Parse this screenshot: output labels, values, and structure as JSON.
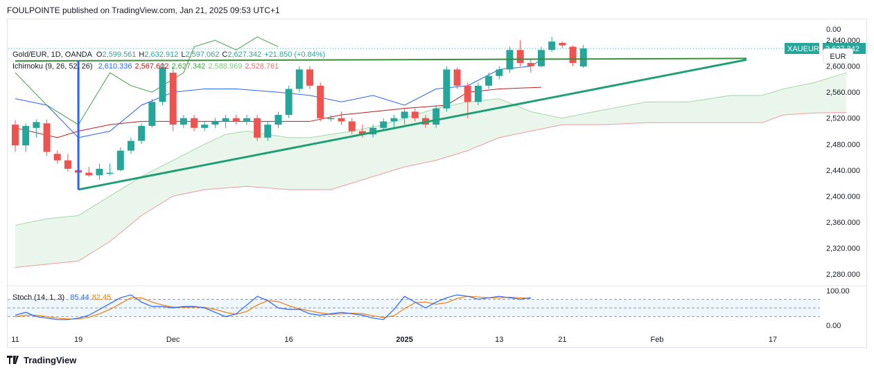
{
  "header": {
    "text": "FOULPOINTE published on TradingView.com, Jan 21, 2025 09:53 UTC+1"
  },
  "footer": {
    "brand": "TradingView"
  },
  "legend": {
    "symbol": "Gold/EUR, 1D, OANDA",
    "o_label": "O",
    "o_value": "2,599.561",
    "h_label": "H",
    "h_value": "2,632.912",
    "l_label": "L",
    "l_value": "2,597.062",
    "c_label": "C",
    "c_value": "2,627.342",
    "change": "+21.850 (+0.84%)",
    "ichimoku_label": "Ichimoku (9, 26, 52, 26)",
    "ichimoku_values": [
      "2,610.336",
      "2,567.602",
      "2,627.342",
      "2,588.969",
      "2,528.761"
    ],
    "stoch_label": "Stoch (14, 1, 3)",
    "stoch_values": [
      "85.44",
      "82.45"
    ]
  },
  "currency_button": "EUR",
  "price_tag": {
    "symbol": "XAUEUR",
    "value": "2,627.342"
  },
  "colors": {
    "up": "#26a69a",
    "down": "#ef5350",
    "conversion": "#2962ff",
    "base": "#b71c1c",
    "lagging": "#43a047",
    "spanA": "#a5d6a7",
    "spanB": "#ef9a9a",
    "cloud": "#e8f5e9",
    "trend": "#1f9e78",
    "resistance": "#388e3c",
    "marker": "#2962ff",
    "stochK": "#2962ff",
    "stochD": "#f57c00"
  },
  "chart_data": {
    "type": "candlestick",
    "price_axis": {
      "ticks": [
        "0.00",
        "2,640.000",
        "2,600.000",
        "2,560.000",
        "2,520.000",
        "2,480.000",
        "2,440.000",
        "2,400.000",
        "2,360.000",
        "2,320.000",
        "2,280.000"
      ],
      "range": [
        2265,
        2670
      ]
    },
    "time_axis": {
      "ticks": [
        {
          "label": "11",
          "bar": 0,
          "bold": false
        },
        {
          "label": "19",
          "bar": 6,
          "bold": false
        },
        {
          "label": "Dec",
          "bar": 15,
          "bold": false
        },
        {
          "label": "16",
          "bar": 26,
          "bold": false
        },
        {
          "label": "2025",
          "bar": 37,
          "bold": true
        },
        {
          "label": "13",
          "bar": 46,
          "bold": false
        },
        {
          "label": "21",
          "bar": 52,
          "bold": false
        },
        {
          "label": "Feb",
          "bar": 61,
          "bold": false
        },
        {
          "label": "17",
          "bar": 72,
          "bold": false
        }
      ]
    },
    "candles": [
      [
        2510,
        2517,
        2468,
        2478
      ],
      [
        2478,
        2512,
        2468,
        2508
      ],
      [
        2505,
        2518,
        2490,
        2514
      ],
      [
        2512,
        2518,
        2462,
        2468
      ],
      [
        2465,
        2470,
        2450,
        2455
      ],
      [
        2455,
        2465,
        2438,
        2442
      ],
      [
        2440,
        2450,
        2432,
        2436
      ],
      [
        2436,
        2445,
        2430,
        2432
      ],
      [
        2432,
        2450,
        2425,
        2442
      ],
      [
        2436,
        2450,
        2432,
        2436
      ],
      [
        2440,
        2475,
        2438,
        2470
      ],
      [
        2470,
        2490,
        2465,
        2485
      ],
      [
        2485,
        2512,
        2480,
        2508
      ],
      [
        2508,
        2550,
        2505,
        2545
      ],
      [
        2545,
        2605,
        2540,
        2598
      ],
      [
        2590,
        2600,
        2500,
        2510
      ],
      [
        2510,
        2525,
        2505,
        2520
      ],
      [
        2520,
        2525,
        2500,
        2505
      ],
      [
        2505,
        2515,
        2500,
        2510
      ],
      [
        2510,
        2520,
        2505,
        2515
      ],
      [
        2515,
        2525,
        2505,
        2520
      ],
      [
        2520,
        2525,
        2510,
        2515
      ],
      [
        2515,
        2525,
        2510,
        2520
      ],
      [
        2520,
        2525,
        2485,
        2490
      ],
      [
        2490,
        2515,
        2485,
        2510
      ],
      [
        2510,
        2530,
        2505,
        2525
      ],
      [
        2525,
        2570,
        2520,
        2565
      ],
      [
        2565,
        2600,
        2560,
        2595
      ],
      [
        2595,
        2600,
        2565,
        2570
      ],
      [
        2570,
        2575,
        2515,
        2520
      ],
      [
        2520,
        2525,
        2515,
        2520
      ],
      [
        2520,
        2530,
        2510,
        2515
      ],
      [
        2515,
        2520,
        2495,
        2500
      ],
      [
        2500,
        2510,
        2490,
        2495
      ],
      [
        2495,
        2510,
        2490,
        2505
      ],
      [
        2505,
        2520,
        2500,
        2515
      ],
      [
        2515,
        2525,
        2505,
        2520
      ],
      [
        2520,
        2535,
        2510,
        2530
      ],
      [
        2530,
        2535,
        2515,
        2520
      ],
      [
        2520,
        2525,
        2505,
        2510
      ],
      [
        2510,
        2540,
        2505,
        2535
      ],
      [
        2535,
        2600,
        2530,
        2595
      ],
      [
        2595,
        2598,
        2565,
        2570
      ],
      [
        2570,
        2575,
        2520,
        2545
      ],
      [
        2545,
        2575,
        2540,
        2570
      ],
      [
        2570,
        2590,
        2565,
        2585
      ],
      [
        2585,
        2600,
        2580,
        2595
      ],
      [
        2595,
        2630,
        2590,
        2625
      ],
      [
        2625,
        2640,
        2600,
        2605
      ],
      [
        2605,
        2612,
        2590,
        2600
      ],
      [
        2600,
        2630,
        2598,
        2625
      ],
      [
        2625,
        2645,
        2622,
        2638
      ],
      [
        2636,
        2638,
        2628,
        2632
      ],
      [
        2630,
        2632,
        2600,
        2605
      ],
      [
        2599.561,
        2632.912,
        2597.062,
        2627.342
      ]
    ],
    "ichimoku": {
      "conversion": [
        [
          0,
          2550
        ],
        [
          3,
          2540
        ],
        [
          6,
          2490
        ],
        [
          9,
          2500
        ],
        [
          12,
          2540
        ],
        [
          15,
          2560
        ],
        [
          18,
          2565
        ],
        [
          21,
          2565
        ],
        [
          25,
          2560
        ],
        [
          28,
          2555
        ],
        [
          31,
          2545
        ],
        [
          34,
          2555
        ],
        [
          37,
          2540
        ],
        [
          40,
          2565
        ],
        [
          43,
          2570
        ],
        [
          46,
          2595
        ],
        [
          49,
          2600
        ],
        [
          50,
          2610
        ]
      ],
      "base": [
        [
          0,
          2505
        ],
        [
          4,
          2490
        ],
        [
          6,
          2500
        ],
        [
          9,
          2510
        ],
        [
          12,
          2515
        ],
        [
          15,
          2515
        ],
        [
          20,
          2515
        ],
        [
          28,
          2515
        ],
        [
          31,
          2525
        ],
        [
          34,
          2530
        ],
        [
          37,
          2535
        ],
        [
          41,
          2540
        ],
        [
          43,
          2560
        ],
        [
          46,
          2565
        ],
        [
          50,
          2567.602
        ]
      ],
      "lagging": [
        [
          0,
          2590
        ],
        [
          3,
          2540
        ],
        [
          6,
          2510
        ],
        [
          9,
          2590
        ],
        [
          11,
          2570
        ],
        [
          13,
          2560
        ],
        [
          16,
          2590
        ],
        [
          17,
          2630
        ],
        [
          19,
          2640
        ],
        [
          21,
          2625
        ],
        [
          23,
          2645
        ],
        [
          25,
          2630
        ]
      ],
      "span_a": [
        [
          0,
          2355
        ],
        [
          3,
          2365
        ],
        [
          6,
          2370
        ],
        [
          9,
          2400
        ],
        [
          12,
          2430
        ],
        [
          15,
          2455
        ],
        [
          18,
          2480
        ],
        [
          20,
          2495
        ],
        [
          22,
          2500
        ],
        [
          26,
          2490
        ],
        [
          28,
          2490
        ],
        [
          32,
          2500
        ],
        [
          35,
          2510
        ],
        [
          37,
          2520
        ],
        [
          40,
          2535
        ],
        [
          43,
          2545
        ],
        [
          46,
          2550
        ],
        [
          49,
          2530
        ],
        [
          52,
          2520
        ],
        [
          55,
          2530
        ],
        [
          60,
          2545
        ],
        [
          64,
          2545
        ],
        [
          68,
          2555
        ],
        [
          71,
          2555
        ],
        [
          73,
          2565
        ],
        [
          76,
          2575
        ],
        [
          79,
          2590
        ]
      ],
      "span_b": [
        [
          0,
          2290
        ],
        [
          3,
          2295
        ],
        [
          6,
          2300
        ],
        [
          9,
          2330
        ],
        [
          12,
          2370
        ],
        [
          15,
          2400
        ],
        [
          18,
          2410
        ],
        [
          22,
          2415
        ],
        [
          26,
          2410
        ],
        [
          30,
          2410
        ],
        [
          33,
          2425
        ],
        [
          37,
          2445
        ],
        [
          40,
          2455
        ],
        [
          43,
          2470
        ],
        [
          46,
          2490
        ],
        [
          49,
          2500
        ],
        [
          52,
          2510
        ],
        [
          56,
          2510
        ],
        [
          60,
          2513
        ],
        [
          64,
          2513
        ],
        [
          68,
          2513
        ],
        [
          71,
          2513
        ],
        [
          73,
          2525
        ],
        [
          76,
          2528
        ],
        [
          79,
          2528.761
        ]
      ]
    },
    "drawings": {
      "resistance": [
        [
          0,
          2608
        ],
        [
          69.5,
          2612
        ]
      ],
      "trendline": [
        [
          6,
          2410
        ],
        [
          69.5,
          2610
        ]
      ],
      "marker": [
        6,
        2410,
        2608
      ]
    },
    "stoch": {
      "range": [
        0,
        100
      ],
      "ticks": [
        "100.00",
        "0.00"
      ],
      "bands": [
        80,
        50,
        20
      ],
      "k": [
        [
          0,
          25
        ],
        [
          1,
          35
        ],
        [
          2,
          20
        ],
        [
          3,
          15
        ],
        [
          4,
          10
        ],
        [
          5,
          10
        ],
        [
          6,
          15
        ],
        [
          7,
          25
        ],
        [
          8,
          45
        ],
        [
          9,
          65
        ],
        [
          10,
          85
        ],
        [
          11,
          95
        ],
        [
          12,
          70
        ],
        [
          13,
          55
        ],
        [
          14,
          55
        ],
        [
          15,
          50
        ],
        [
          16,
          55
        ],
        [
          17,
          55
        ],
        [
          18,
          50
        ],
        [
          19,
          35
        ],
        [
          20,
          20
        ],
        [
          21,
          30
        ],
        [
          22,
          60
        ],
        [
          23,
          90
        ],
        [
          24,
          75
        ],
        [
          25,
          50
        ],
        [
          26,
          45
        ],
        [
          27,
          45
        ],
        [
          28,
          30
        ],
        [
          29,
          25
        ],
        [
          30,
          30
        ],
        [
          31,
          35
        ],
        [
          32,
          30
        ],
        [
          33,
          25
        ],
        [
          34,
          15
        ],
        [
          35,
          10
        ],
        [
          36,
          45
        ],
        [
          37,
          90
        ],
        [
          38,
          70
        ],
        [
          39,
          50
        ],
        [
          40,
          70
        ],
        [
          41,
          85
        ],
        [
          42,
          95
        ],
        [
          43,
          90
        ],
        [
          44,
          80
        ],
        [
          45,
          85
        ],
        [
          46,
          90
        ],
        [
          47,
          85
        ],
        [
          48,
          80
        ],
        [
          49,
          85.44
        ]
      ],
      "d": [
        [
          0,
          20
        ],
        [
          1,
          25
        ],
        [
          2,
          25
        ],
        [
          3,
          20
        ],
        [
          4,
          15
        ],
        [
          5,
          12
        ],
        [
          6,
          12
        ],
        [
          7,
          18
        ],
        [
          8,
          30
        ],
        [
          9,
          45
        ],
        [
          10,
          65
        ],
        [
          11,
          85
        ],
        [
          12,
          85
        ],
        [
          13,
          70
        ],
        [
          14,
          60
        ],
        [
          15,
          53
        ],
        [
          16,
          52
        ],
        [
          17,
          53
        ],
        [
          18,
          52
        ],
        [
          19,
          45
        ],
        [
          20,
          35
        ],
        [
          21,
          28
        ],
        [
          22,
          38
        ],
        [
          23,
          60
        ],
        [
          24,
          75
        ],
        [
          25,
          72
        ],
        [
          26,
          58
        ],
        [
          27,
          47
        ],
        [
          28,
          40
        ],
        [
          29,
          33
        ],
        [
          30,
          28
        ],
        [
          31,
          30
        ],
        [
          32,
          32
        ],
        [
          33,
          30
        ],
        [
          34,
          23
        ],
        [
          35,
          17
        ],
        [
          36,
          23
        ],
        [
          37,
          48
        ],
        [
          38,
          68
        ],
        [
          39,
          70
        ],
        [
          40,
          63
        ],
        [
          41,
          68
        ],
        [
          42,
          83
        ],
        [
          43,
          90
        ],
        [
          44,
          88
        ],
        [
          45,
          85
        ],
        [
          46,
          85
        ],
        [
          47,
          87
        ],
        [
          48,
          85
        ],
        [
          49,
          82.45
        ]
      ]
    }
  }
}
